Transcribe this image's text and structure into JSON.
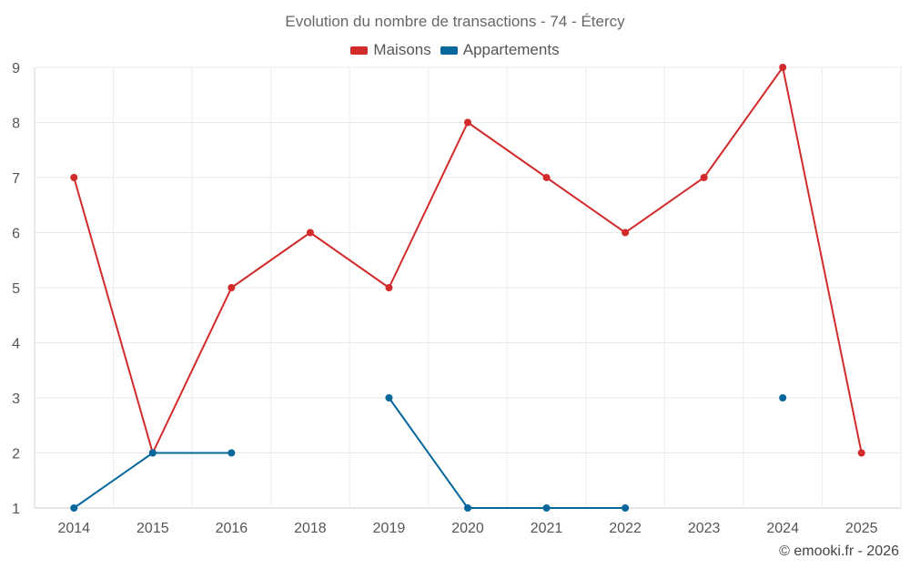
{
  "chart_data": {
    "type": "line",
    "title": "Evolution du nombre de transactions - 74 - Étercy",
    "x": [
      "2014",
      "2015",
      "2016",
      "2018",
      "2019",
      "2020",
      "2021",
      "2022",
      "2023",
      "2024",
      "2025"
    ],
    "series": [
      {
        "name": "Maisons",
        "color": "#d12b2b",
        "values": [
          7,
          2,
          5,
          6,
          5,
          8,
          7,
          6,
          7,
          9,
          2
        ]
      },
      {
        "name": "Appartements",
        "color": "#06679c",
        "values": [
          1,
          2,
          2,
          null,
          3,
          1,
          1,
          1,
          null,
          3,
          null
        ]
      }
    ],
    "yticks": [
      1,
      2,
      3,
      4,
      5,
      6,
      7,
      8,
      9
    ],
    "ylim": [
      1,
      9
    ],
    "grid": true,
    "legend_position": "top-center"
  },
  "footer": {
    "credit": "© emooki.fr - 2026"
  }
}
